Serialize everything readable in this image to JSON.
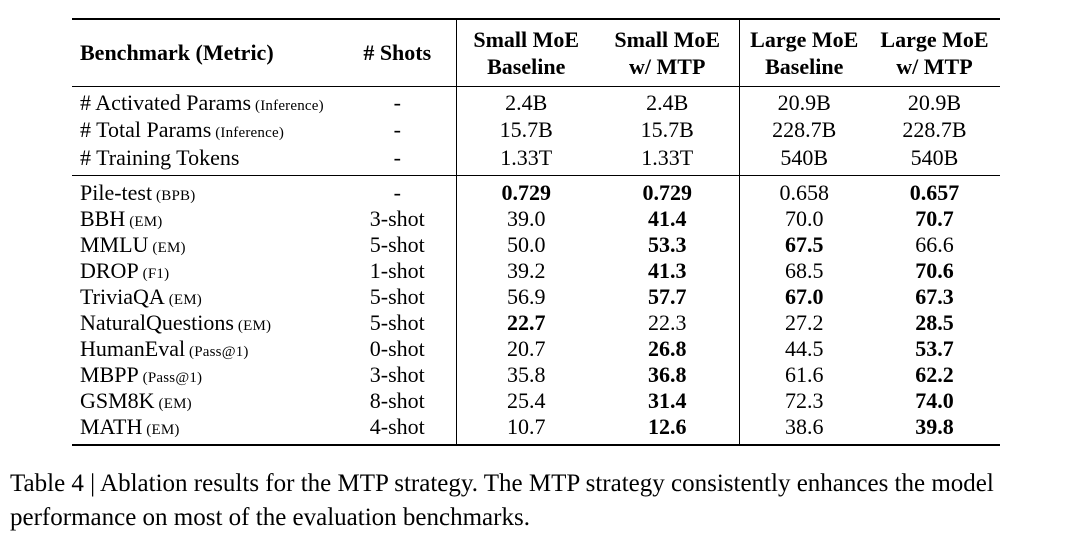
{
  "table": {
    "columns": [
      {
        "key": "benchmark-metric",
        "lines": [
          "Benchmark (Metric)"
        ]
      },
      {
        "key": "shots",
        "lines": [
          "# Shots"
        ]
      },
      {
        "key": "small-moe-baseline",
        "lines": [
          "Small MoE",
          "Baseline"
        ]
      },
      {
        "key": "small-moe-mtp",
        "lines": [
          "Small MoE",
          "w/ MTP"
        ]
      },
      {
        "key": "large-moe-baseline",
        "lines": [
          "Large MoE",
          "Baseline"
        ]
      },
      {
        "key": "large-moe-mtp",
        "lines": [
          "Large MoE",
          "w/ MTP"
        ]
      }
    ],
    "param_rows": [
      {
        "name": "# Activated Params",
        "suffix": "(Inference)",
        "shots": "-",
        "values": [
          {
            "v": "2.4B",
            "b": false
          },
          {
            "v": "2.4B",
            "b": false
          },
          {
            "v": "20.9B",
            "b": false
          },
          {
            "v": "20.9B",
            "b": false
          }
        ]
      },
      {
        "name": "# Total Params",
        "suffix": "(Inference)",
        "shots": "-",
        "values": [
          {
            "v": "15.7B",
            "b": false
          },
          {
            "v": "15.7B",
            "b": false
          },
          {
            "v": "228.7B",
            "b": false
          },
          {
            "v": "228.7B",
            "b": false
          }
        ]
      },
      {
        "name": "# Training Tokens",
        "suffix": "",
        "shots": "-",
        "values": [
          {
            "v": "1.33T",
            "b": false
          },
          {
            "v": "1.33T",
            "b": false
          },
          {
            "v": "540B",
            "b": false
          },
          {
            "v": "540B",
            "b": false
          }
        ]
      }
    ],
    "benchmark_rows": [
      {
        "name": "Pile-test",
        "suffix": "(BPB)",
        "shots": "-",
        "values": [
          {
            "v": "0.729",
            "b": true
          },
          {
            "v": "0.729",
            "b": true
          },
          {
            "v": "0.658",
            "b": false
          },
          {
            "v": "0.657",
            "b": true
          }
        ]
      },
      {
        "name": "BBH",
        "suffix": "(EM)",
        "shots": "3-shot",
        "values": [
          {
            "v": "39.0",
            "b": false
          },
          {
            "v": "41.4",
            "b": true
          },
          {
            "v": "70.0",
            "b": false
          },
          {
            "v": "70.7",
            "b": true
          }
        ]
      },
      {
        "name": "MMLU",
        "suffix": "(EM)",
        "shots": "5-shot",
        "values": [
          {
            "v": "50.0",
            "b": false
          },
          {
            "v": "53.3",
            "b": true
          },
          {
            "v": "67.5",
            "b": true
          },
          {
            "v": "66.6",
            "b": false
          }
        ]
      },
      {
        "name": "DROP",
        "suffix": "(F1)",
        "shots": "1-shot",
        "values": [
          {
            "v": "39.2",
            "b": false
          },
          {
            "v": "41.3",
            "b": true
          },
          {
            "v": "68.5",
            "b": false
          },
          {
            "v": "70.6",
            "b": true
          }
        ]
      },
      {
        "name": "TriviaQA",
        "suffix": "(EM)",
        "shots": "5-shot",
        "values": [
          {
            "v": "56.9",
            "b": false
          },
          {
            "v": "57.7",
            "b": true
          },
          {
            "v": "67.0",
            "b": true
          },
          {
            "v": "67.3",
            "b": true
          }
        ]
      },
      {
        "name": "NaturalQuestions",
        "suffix": "(EM)",
        "shots": "5-shot",
        "values": [
          {
            "v": "22.7",
            "b": true
          },
          {
            "v": "22.3",
            "b": false
          },
          {
            "v": "27.2",
            "b": false
          },
          {
            "v": "28.5",
            "b": true
          }
        ]
      },
      {
        "name": "HumanEval",
        "suffix": "(Pass@1)",
        "shots": "0-shot",
        "values": [
          {
            "v": "20.7",
            "b": false
          },
          {
            "v": "26.8",
            "b": true
          },
          {
            "v": "44.5",
            "b": false
          },
          {
            "v": "53.7",
            "b": true
          }
        ]
      },
      {
        "name": "MBPP",
        "suffix": "(Pass@1)",
        "shots": "3-shot",
        "values": [
          {
            "v": "35.8",
            "b": false
          },
          {
            "v": "36.8",
            "b": true
          },
          {
            "v": "61.6",
            "b": false
          },
          {
            "v": "62.2",
            "b": true
          }
        ]
      },
      {
        "name": "GSM8K",
        "suffix": "(EM)",
        "shots": "8-shot",
        "values": [
          {
            "v": "25.4",
            "b": false
          },
          {
            "v": "31.4",
            "b": true
          },
          {
            "v": "72.3",
            "b": false
          },
          {
            "v": "74.0",
            "b": true
          }
        ]
      },
      {
        "name": "MATH",
        "suffix": "(EM)",
        "shots": "4-shot",
        "values": [
          {
            "v": "10.7",
            "b": false
          },
          {
            "v": "12.6",
            "b": true
          },
          {
            "v": "38.6",
            "b": false
          },
          {
            "v": "39.8",
            "b": true
          }
        ]
      }
    ]
  },
  "caption": {
    "text": "Table 4 | Ablation results for the MTP strategy. The MTP strategy consistently enhances the model performance on most of the evaluation benchmarks."
  },
  "colors": {
    "text": "#000000",
    "background": "#ffffff",
    "rule": "#000000"
  }
}
